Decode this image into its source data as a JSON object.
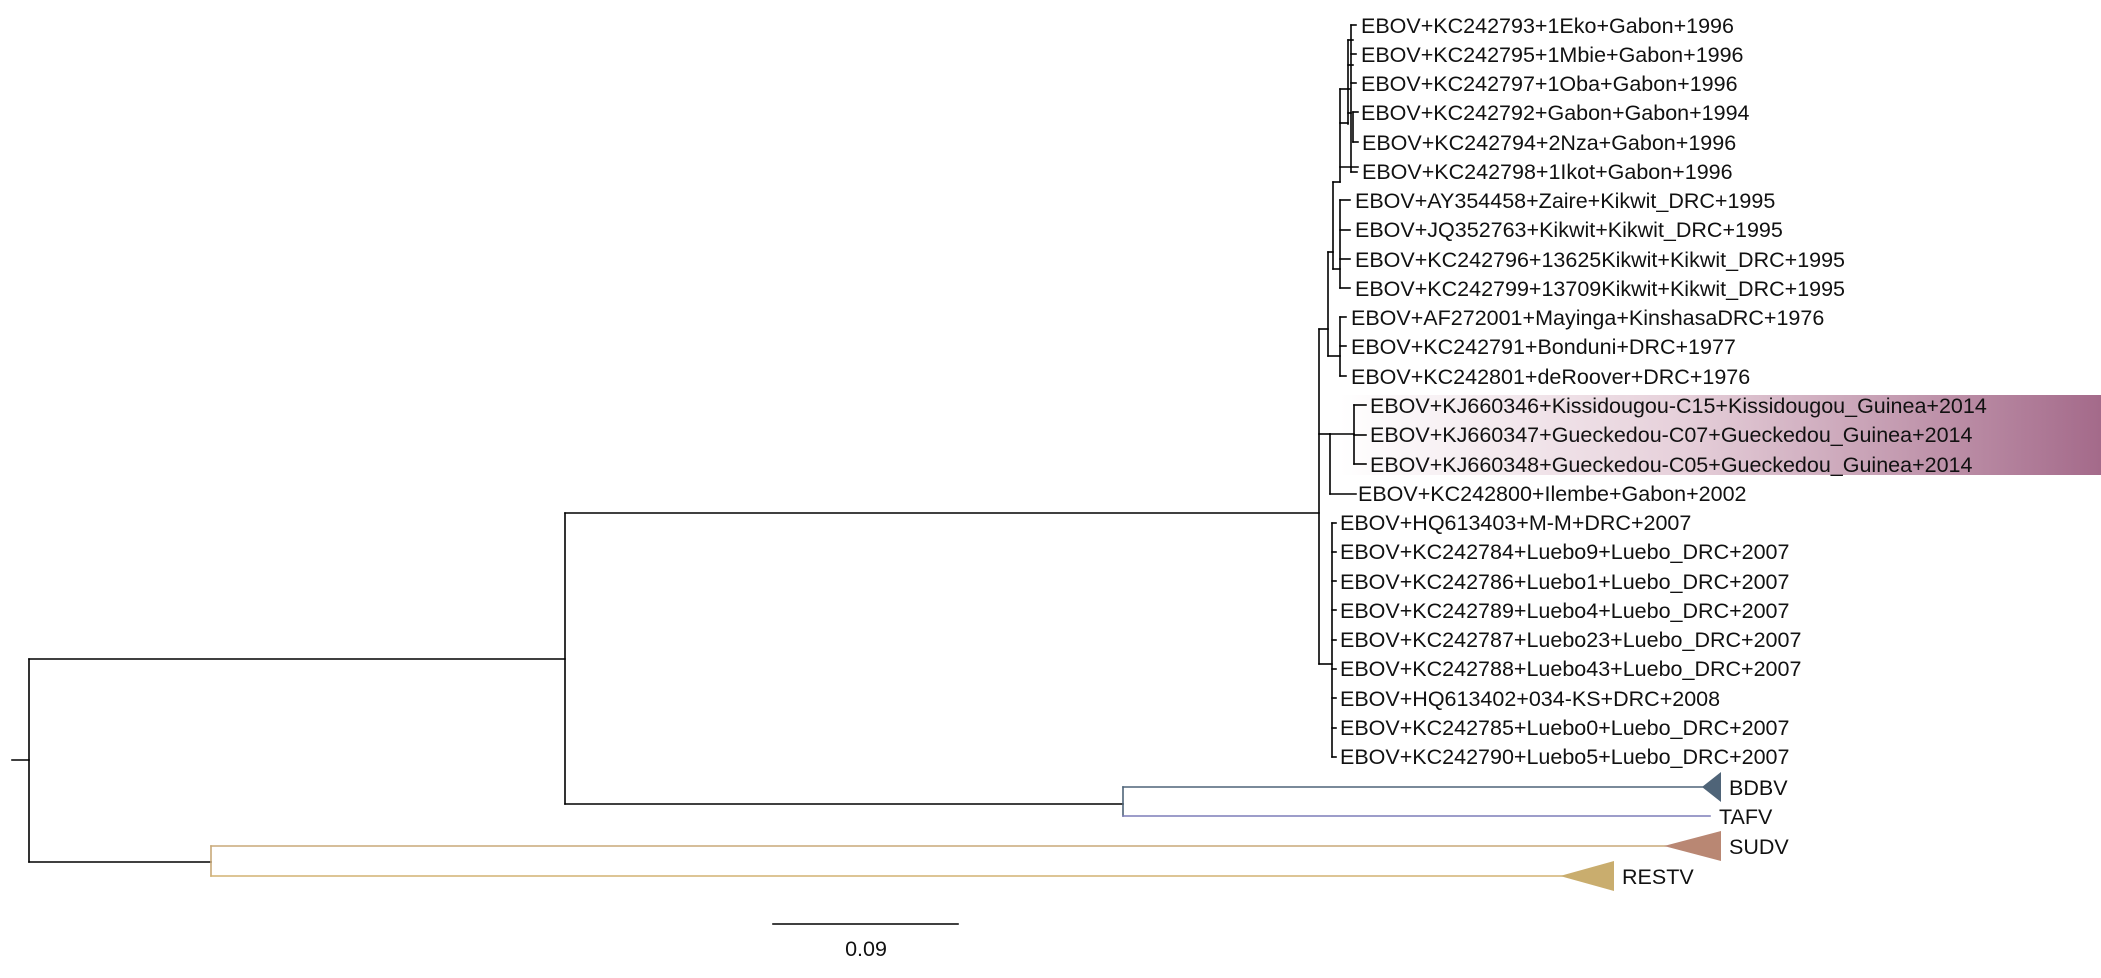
{
  "tree": {
    "taxa": [
      "EBOV+KC242793+1Eko+Gabon+1996",
      "EBOV+KC242795+1Mbie+Gabon+1996",
      "EBOV+KC242797+1Oba+Gabon+1996",
      "EBOV+KC242792+Gabon+Gabon+1994",
      "EBOV+KC242794+2Nza+Gabon+1996",
      "EBOV+KC242798+1Ikot+Gabon+1996",
      "EBOV+AY354458+Zaire+Kikwit_DRC+1995",
      "EBOV+JQ352763+Kikwit+Kikwit_DRC+1995",
      "EBOV+KC242796+13625Kikwit+Kikwit_DRC+1995",
      "EBOV+KC242799+13709Kikwit+Kikwit_DRC+1995",
      "EBOV+AF272001+Mayinga+KinshasaDRC+1976",
      "EBOV+KC242791+Bonduni+DRC+1977",
      "EBOV+KC242801+deRoover+DRC+1976",
      "EBOV+KJ660346+Kissidougou-C15+Kissidougou_Guinea+2014",
      "EBOV+KJ660347+Gueckedou-C07+Gueckedou_Guinea+2014",
      "EBOV+KJ660348+Gueckedou-C05+Gueckedou_Guinea+2014",
      "EBOV+KC242800+Ilembe+Gabon+2002",
      "EBOV+HQ613403+M-M+DRC+2007",
      "EBOV+KC242784+Luebo9+Luebo_DRC+2007",
      "EBOV+KC242786+Luebo1+Luebo_DRC+2007",
      "EBOV+KC242789+Luebo4+Luebo_DRC+2007",
      "EBOV+KC242787+Luebo23+Luebo_DRC+2007",
      "EBOV+KC242788+Luebo43+Luebo_DRC+2007",
      "EBOV+HQ613402+034-KS+DRC+2008",
      "EBOV+KC242785+Luebo0+Luebo_DRC+2007",
      "EBOV+KC242790+Luebo5+Luebo_DRC+2007"
    ],
    "highlighted_taxa": [
      "EBOV+KJ660346+Kissidougou-C15+Kissidougou_Guinea+2014",
      "EBOV+KJ660347+Gueckedou-C07+Gueckedou_Guinea+2014",
      "EBOV+KJ660348+Gueckedou-C05+Gueckedou_Guinea+2014"
    ],
    "highlight_gradient": [
      "#ffffff",
      "#e6d0da",
      "#a46a8a"
    ],
    "collapsed_clades": [
      {
        "name": "BDBV",
        "color": "#4f6478"
      },
      {
        "name": "TAFV",
        "color": "#7d7db8"
      },
      {
        "name": "SUDV",
        "color": "#b98773"
      },
      {
        "name": "RESTV",
        "color": "#c9ad6e"
      }
    ],
    "branch_colors": {
      "default": "#000000",
      "bdbv": "#4f6478",
      "tafv": "#7d7db8",
      "sudv": "#c8a878",
      "restv": "#d2b272"
    },
    "scale_bar": {
      "value": 0.09
    }
  }
}
